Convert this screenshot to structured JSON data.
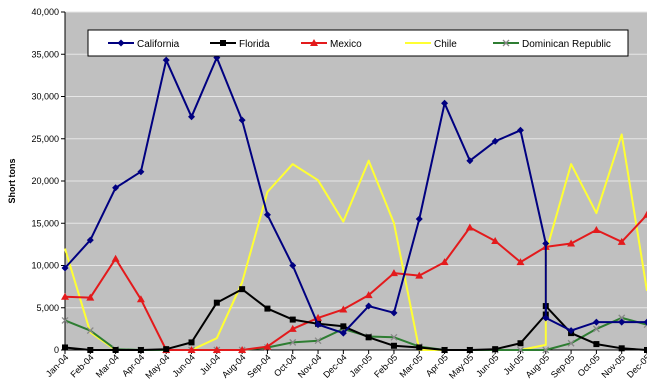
{
  "chart_data": {
    "type": "line",
    "xlabel": "",
    "ylabel": "Short tons",
    "ylim": [
      0,
      40000
    ],
    "yticks": [
      0,
      5000,
      10000,
      15000,
      20000,
      25000,
      30000,
      35000,
      40000
    ],
    "ytick_labels": [
      "0",
      "5,000",
      "10,000",
      "15,000",
      "20,000",
      "25,000",
      "30,000",
      "35,000",
      "40,000"
    ],
    "categories": [
      "Jan-04",
      "Feb-04",
      "Mar-04",
      "Apr-04",
      "May-04",
      "Jun-04",
      "Jul-04",
      "Aug-04",
      "Sep-04",
      "Oct-04",
      "Nov-04",
      "Dec-04",
      "Jan-05",
      "Feb-05",
      "Mar-05",
      "Apr-05",
      "May-05",
      "Jun-05",
      "Jul-05",
      "Aug-05",
      "Sep-05",
      "Oct-05",
      "Nov-05",
      "Dec-05"
    ],
    "grid": "horizontal",
    "background": "#c0c0c0",
    "legend_position": "top",
    "series": [
      {
        "name": "California",
        "color": "#000080",
        "marker": "diamond",
        "x": [
          0,
          1,
          2,
          3,
          4,
          5,
          6,
          7,
          8,
          9,
          10,
          11,
          12,
          13,
          14,
          15,
          16,
          17,
          18,
          19,
          19,
          20,
          21,
          22,
          23
        ],
        "values": [
          9700,
          13000,
          19200,
          21100,
          34300,
          27600,
          34600,
          27200,
          16000,
          10000,
          3000,
          2000,
          5200,
          4400,
          15500,
          29200,
          22400,
          24700,
          26000,
          12600,
          3800,
          2300,
          3300,
          3300,
          3300
        ]
      },
      {
        "name": "Florida",
        "color": "#000000",
        "marker": "square",
        "x": [
          0,
          1,
          2,
          3,
          4,
          5,
          6,
          7,
          8,
          9,
          10,
          11,
          12,
          13,
          14,
          15,
          16,
          17,
          18,
          19,
          19,
          20,
          21,
          22,
          23
        ],
        "values": [
          300,
          0,
          0,
          0,
          100,
          900,
          5600,
          7200,
          4900,
          3600,
          3100,
          2800,
          1500,
          500,
          300,
          0,
          0,
          100,
          800,
          4200,
          5200,
          2000,
          700,
          200,
          0
        ]
      },
      {
        "name": "Mexico",
        "color": "#e31a1c",
        "marker": "triangle",
        "x": [
          0,
          1,
          2,
          3,
          4,
          5,
          6,
          7,
          8,
          9,
          10,
          11,
          12,
          13,
          14,
          15,
          16,
          17,
          18,
          19,
          20,
          21,
          22,
          23
        ],
        "values": [
          6300,
          6200,
          10800,
          6000,
          0,
          0,
          0,
          0,
          400,
          2500,
          3800,
          4800,
          6500,
          9100,
          8800,
          10400,
          14500,
          12900,
          10400,
          12200,
          12600,
          14200,
          12800,
          16000
        ]
      },
      {
        "name": "Chile",
        "color": "#ffff33",
        "marker": "none",
        "x": [
          0,
          1,
          2,
          3,
          4,
          5,
          6,
          7,
          8,
          9,
          10,
          11,
          12,
          13,
          14,
          15,
          16,
          17,
          18,
          19,
          19,
          20,
          21,
          22,
          23
        ],
        "values": [
          12000,
          2100,
          0,
          0,
          0,
          0,
          1400,
          8000,
          18700,
          22000,
          20100,
          15200,
          22400,
          15000,
          0,
          0,
          0,
          0,
          0,
          600,
          11500,
          22000,
          16200,
          25500,
          7000
        ]
      },
      {
        "name": "Dominican Republic",
        "color": "#2e7d32",
        "marker": "x",
        "x": [
          0,
          1,
          2,
          3,
          4,
          5,
          6,
          7,
          8,
          9,
          10,
          11,
          12,
          13,
          14,
          15,
          16,
          17,
          18,
          19,
          20,
          21,
          22,
          23
        ],
        "values": [
          3500,
          2300,
          100,
          0,
          0,
          0,
          0,
          0,
          300,
          900,
          1100,
          2500,
          1600,
          1500,
          400,
          0,
          0,
          0,
          0,
          0,
          800,
          2500,
          3800,
          3000
        ]
      }
    ]
  }
}
